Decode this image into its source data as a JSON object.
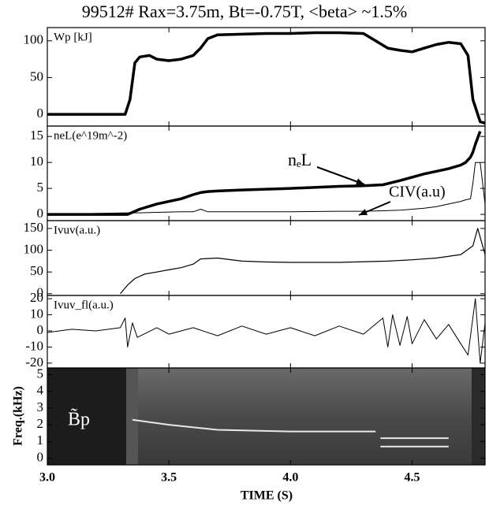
{
  "chart_data": [
    {
      "type": "line",
      "title": "99512# Rax=3.75m, Bt=-0.75T, <beta> ~1.5%",
      "label": "Wp [kJ]",
      "xlim": [
        3.0,
        4.8
      ],
      "ylim": [
        -16,
        118
      ],
      "yticks": [
        0,
        50,
        100
      ],
      "x": [
        3.0,
        3.32,
        3.34,
        3.36,
        3.38,
        3.42,
        3.45,
        3.5,
        3.55,
        3.6,
        3.63,
        3.66,
        3.7,
        3.8,
        3.9,
        4.0,
        4.1,
        4.2,
        4.3,
        4.35,
        4.4,
        4.45,
        4.5,
        4.55,
        4.6,
        4.65,
        4.7,
        4.73,
        4.75,
        4.78,
        4.8
      ],
      "series": [
        {
          "color": "#000000",
          "linewidth": 3.5,
          "values": [
            0,
            0,
            20,
            70,
            78,
            80,
            75,
            73,
            75,
            80,
            90,
            103,
            108,
            109,
            110,
            110,
            111,
            111,
            110,
            100,
            90,
            87,
            85,
            90,
            95,
            98,
            96,
            80,
            20,
            -10,
            -12
          ]
        }
      ]
    },
    {
      "type": "line",
      "label": "neL(e^19m^-2)",
      "annotations": [
        "nₑL",
        "CIV(a.u)"
      ],
      "xlim": [
        3.0,
        4.8
      ],
      "ylim": [
        -1.2,
        17
      ],
      "yticks": [
        0,
        5,
        10,
        15
      ],
      "x": [
        3.0,
        3.33,
        3.38,
        3.45,
        3.55,
        3.6,
        3.63,
        3.66,
        3.7,
        3.8,
        4.0,
        4.2,
        4.3,
        4.38,
        4.45,
        4.55,
        4.6,
        4.65,
        4.7,
        4.72,
        4.74,
        4.75,
        4.76,
        4.78,
        4.8
      ],
      "series": [
        {
          "color": "#000000",
          "linewidth": 3.5,
          "values": [
            0,
            0,
            1,
            2,
            3,
            3.8,
            4.2,
            4.4,
            4.5,
            4.7,
            5,
            5.4,
            5.5,
            5.7,
            6.5,
            7.8,
            8.3,
            8.8,
            9.5,
            10,
            11,
            12,
            13.5,
            16,
            null
          ]
        },
        {
          "color": "#000000",
          "linewidth": 1,
          "values": [
            0,
            0.3,
            0.3,
            0.4,
            0.5,
            0.5,
            1,
            0.5,
            0.5,
            0.5,
            0.5,
            0.6,
            0.6,
            0.7,
            0.8,
            1.2,
            1.5,
            2,
            2.5,
            2.8,
            3,
            6,
            10,
            10,
            2
          ]
        }
      ]
    },
    {
      "type": "line",
      "label": "Ivuv(a.u.)",
      "xlim": [
        3.0,
        4.8
      ],
      "ylim": [
        -4,
        168
      ],
      "yticks": [
        0,
        50,
        100,
        150
      ],
      "x": [
        3.3,
        3.33,
        3.36,
        3.4,
        3.45,
        3.5,
        3.55,
        3.6,
        3.63,
        3.7,
        3.8,
        3.9,
        4.0,
        4.2,
        4.4,
        4.5,
        4.6,
        4.7,
        4.75,
        4.77,
        4.8
      ],
      "series": [
        {
          "color": "#000000",
          "linewidth": 1.2,
          "values": [
            0,
            20,
            35,
            45,
            50,
            55,
            60,
            68,
            80,
            82,
            75,
            73,
            72,
            72,
            75,
            78,
            82,
            90,
            110,
            150,
            90
          ]
        }
      ]
    },
    {
      "type": "line",
      "label": "Ivuv_fl(a.u.)",
      "xlim": [
        3.0,
        4.8
      ],
      "ylim": [
        -23,
        22
      ],
      "yticks": [
        -20,
        -10,
        0,
        10,
        20
      ],
      "x": [
        3.0,
        3.1,
        3.2,
        3.3,
        3.32,
        3.33,
        3.35,
        3.37,
        3.45,
        3.5,
        3.6,
        3.7,
        3.8,
        3.9,
        4.0,
        4.1,
        4.2,
        4.3,
        4.38,
        4.4,
        4.42,
        4.45,
        4.48,
        4.5,
        4.55,
        4.6,
        4.65,
        4.7,
        4.73,
        4.76,
        4.78,
        4.8
      ],
      "series": [
        {
          "color": "#000000",
          "linewidth": 1,
          "values": [
            -1,
            1,
            0,
            2,
            8,
            -10,
            5,
            -4,
            2,
            -2,
            2,
            -3,
            3,
            -2,
            2,
            -3,
            3,
            -2,
            8,
            -10,
            10,
            -9,
            9,
            -8,
            7,
            -5,
            4,
            -8,
            -15,
            20,
            -20,
            5
          ]
        }
      ]
    },
    {
      "type": "spectrogram",
      "annotation": "B̃p",
      "ylabel": "Freq.(kHz)",
      "xlabel": "TIME (S)",
      "xlim": [
        3.0,
        4.8
      ],
      "ylim": [
        -0.4,
        5.4
      ],
      "yticks": [
        0,
        1,
        2,
        3,
        4,
        5
      ],
      "xticks": [
        {
          "value": 3.0,
          "label": "3.0"
        },
        {
          "value": 3.5,
          "label": "3.5"
        },
        {
          "value": 4.0,
          "label": "4.0"
        },
        {
          "value": 4.5,
          "label": "4.5"
        }
      ],
      "x": [
        3.35,
        3.5,
        3.7,
        4.0,
        4.35,
        4.37,
        4.5,
        4.65
      ],
      "series": [
        {
          "color": "#e8e8e8",
          "linewidth": 2,
          "values": [
            2.3,
            2.0,
            1.7,
            1.6,
            1.6,
            null,
            null,
            null
          ]
        },
        {
          "color": "#e8e8e8",
          "linewidth": 2,
          "values": [
            null,
            null,
            null,
            null,
            null,
            1.2,
            1.2,
            1.2
          ]
        },
        {
          "color": "#e8e8e8",
          "linewidth": 2,
          "values": [
            null,
            null,
            null,
            null,
            null,
            0.7,
            0.7,
            0.7
          ]
        }
      ]
    }
  ]
}
